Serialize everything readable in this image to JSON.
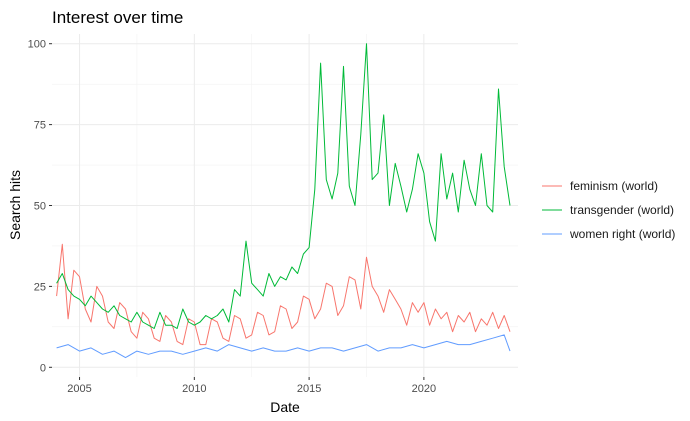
{
  "chart_data": {
    "type": "line",
    "title": "Interest over time",
    "xlabel": "Date",
    "ylabel": "Search hits",
    "xlim": [
      2003.8,
      2024.1
    ],
    "ylim": [
      -3,
      103
    ],
    "x_ticks": [
      2005,
      2010,
      2015,
      2020
    ],
    "y_ticks": [
      0,
      25,
      50,
      75,
      100
    ],
    "grid": true,
    "legend_position": "right",
    "series": [
      {
        "name": "feminism (world)",
        "color": "#F8766D",
        "x": [
          2004.0,
          2004.25,
          2004.5,
          2004.75,
          2005.0,
          2005.25,
          2005.5,
          2005.75,
          2006.0,
          2006.25,
          2006.5,
          2006.75,
          2007.0,
          2007.25,
          2007.5,
          2007.75,
          2008.0,
          2008.25,
          2008.5,
          2008.75,
          2009.0,
          2009.25,
          2009.5,
          2009.75,
          2010.0,
          2010.25,
          2010.5,
          2010.75,
          2011.0,
          2011.25,
          2011.5,
          2011.75,
          2012.0,
          2012.25,
          2012.5,
          2012.75,
          2013.0,
          2013.25,
          2013.5,
          2013.75,
          2014.0,
          2014.25,
          2014.5,
          2014.75,
          2015.0,
          2015.25,
          2015.5,
          2015.75,
          2016.0,
          2016.25,
          2016.5,
          2016.75,
          2017.0,
          2017.25,
          2017.5,
          2017.75,
          2018.0,
          2018.25,
          2018.5,
          2018.75,
          2019.0,
          2019.25,
          2019.5,
          2019.75,
          2020.0,
          2020.25,
          2020.5,
          2020.75,
          2021.0,
          2021.25,
          2021.5,
          2021.75,
          2022.0,
          2022.25,
          2022.5,
          2022.75,
          2023.0,
          2023.25,
          2023.5,
          2023.75
        ],
        "values": [
          22,
          38,
          15,
          30,
          28,
          18,
          14,
          25,
          22,
          14,
          12,
          20,
          18,
          11,
          9,
          17,
          15,
          9,
          8,
          16,
          14,
          8,
          7,
          15,
          14,
          7,
          7,
          15,
          14,
          9,
          8,
          16,
          15,
          9,
          10,
          17,
          16,
          10,
          11,
          19,
          18,
          12,
          14,
          22,
          21,
          15,
          18,
          26,
          25,
          16,
          19,
          28,
          27,
          18,
          34,
          25,
          22,
          17,
          24,
          21,
          18,
          13,
          20,
          17,
          20,
          13,
          18,
          15,
          17,
          11,
          16,
          14,
          17,
          11,
          15,
          13,
          17,
          12,
          16,
          11
        ]
      },
      {
        "name": "transgender (world)",
        "color": "#00BA38",
        "x": [
          2004.0,
          2004.25,
          2004.5,
          2004.75,
          2005.0,
          2005.25,
          2005.5,
          2005.75,
          2006.0,
          2006.25,
          2006.5,
          2006.75,
          2007.0,
          2007.25,
          2007.5,
          2007.75,
          2008.0,
          2008.25,
          2008.5,
          2008.75,
          2009.0,
          2009.25,
          2009.5,
          2009.75,
          2010.0,
          2010.25,
          2010.5,
          2010.75,
          2011.0,
          2011.25,
          2011.5,
          2011.75,
          2012.0,
          2012.25,
          2012.5,
          2012.75,
          2013.0,
          2013.25,
          2013.5,
          2013.75,
          2014.0,
          2014.25,
          2014.5,
          2014.75,
          2015.0,
          2015.25,
          2015.5,
          2015.75,
          2016.0,
          2016.25,
          2016.5,
          2016.75,
          2017.0,
          2017.25,
          2017.5,
          2017.75,
          2018.0,
          2018.25,
          2018.5,
          2018.75,
          2019.0,
          2019.25,
          2019.5,
          2019.75,
          2020.0,
          2020.25,
          2020.5,
          2020.75,
          2021.0,
          2021.25,
          2021.5,
          2021.75,
          2022.0,
          2022.25,
          2022.5,
          2022.75,
          2023.0,
          2023.25,
          2023.5,
          2023.75
        ],
        "values": [
          26,
          29,
          24,
          22,
          21,
          19,
          22,
          20,
          18,
          17,
          19,
          16,
          15,
          14,
          17,
          14,
          13,
          12,
          17,
          13,
          13,
          12,
          18,
          14,
          13,
          14,
          16,
          15,
          16,
          18,
          14,
          24,
          22,
          39,
          26,
          24,
          22,
          29,
          25,
          28,
          27,
          31,
          29,
          35,
          37,
          55,
          94,
          58,
          52,
          60,
          93,
          56,
          50,
          72,
          100,
          58,
          60,
          78,
          50,
          63,
          56,
          48,
          55,
          66,
          60,
          45,
          39,
          66,
          52,
          60,
          48,
          64,
          55,
          50,
          66,
          50,
          48,
          86,
          62,
          50
        ]
      },
      {
        "name": "women right (world)",
        "color": "#619CFF",
        "x": [
          2004.0,
          2004.5,
          2005.0,
          2005.5,
          2006.0,
          2006.5,
          2007.0,
          2007.5,
          2008.0,
          2008.5,
          2009.0,
          2009.5,
          2010.0,
          2010.5,
          2011.0,
          2011.5,
          2012.0,
          2012.5,
          2013.0,
          2013.5,
          2014.0,
          2014.5,
          2015.0,
          2015.5,
          2016.0,
          2016.5,
          2017.0,
          2017.5,
          2018.0,
          2018.5,
          2019.0,
          2019.5,
          2020.0,
          2020.5,
          2021.0,
          2021.5,
          2022.0,
          2022.5,
          2023.0,
          2023.5,
          2023.75
        ],
        "values": [
          6,
          7,
          5,
          6,
          4,
          5,
          3,
          5,
          4,
          5,
          5,
          4,
          5,
          6,
          5,
          7,
          6,
          5,
          6,
          5,
          5,
          6,
          5,
          6,
          6,
          5,
          6,
          7,
          5,
          6,
          6,
          7,
          6,
          7,
          8,
          7,
          7,
          8,
          9,
          10,
          5
        ]
      }
    ]
  }
}
